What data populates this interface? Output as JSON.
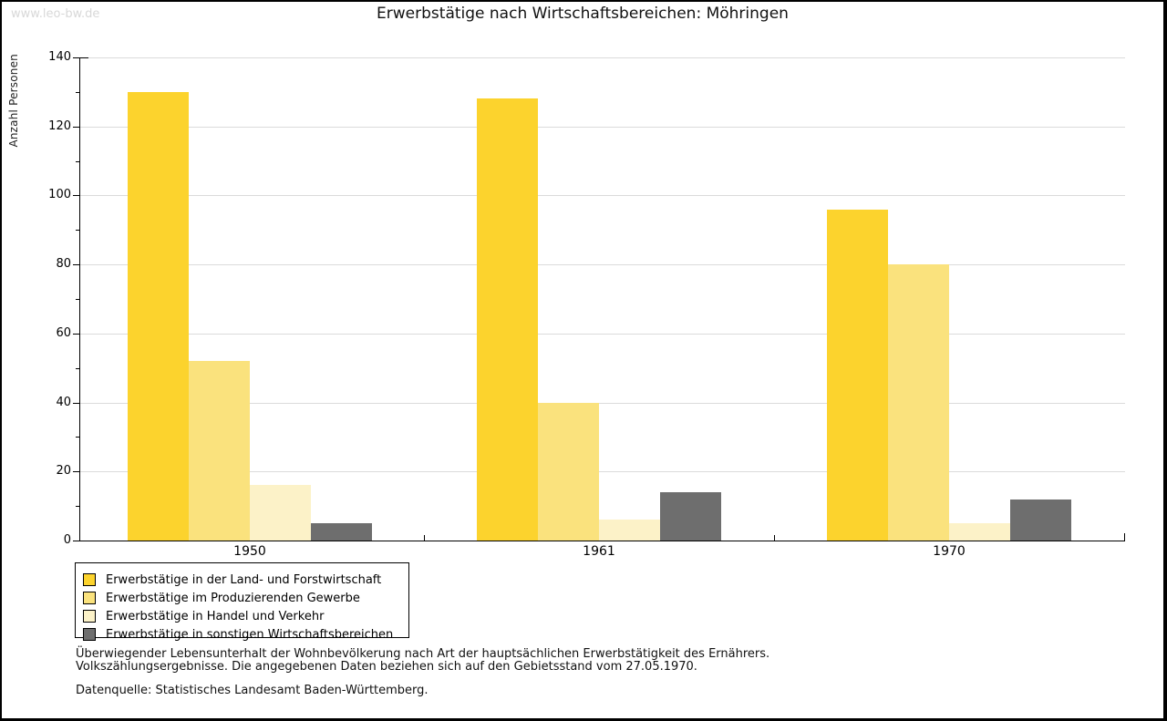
{
  "page": {
    "watermark": "www.leo-bw.de",
    "title": "Erwerbstätige nach Wirtschaftsbereichen: Möhringen"
  },
  "chart_data": {
    "type": "bar",
    "title": "Erwerbstätige nach Wirtschaftsbereichen: Möhringen",
    "xlabel": "",
    "ylabel": "Anzahl Personen",
    "ylim": [
      0,
      140
    ],
    "yticks": [
      0,
      20,
      40,
      60,
      80,
      100,
      120,
      140
    ],
    "grid": true,
    "legend_position": "bottom-left",
    "categories": [
      "1950",
      "1961",
      "1970"
    ],
    "series": [
      {
        "name": "Erwerbstätige in der Land- und Forstwirtschaft",
        "color": "#FCD32D",
        "values": [
          130,
          128,
          96
        ]
      },
      {
        "name": "Erwerbstätige im Produzierenden Gewerbe",
        "color": "#FAE27D",
        "values": [
          52,
          40,
          80
        ]
      },
      {
        "name": "Erwerbstätige in Handel und Verkehr",
        "color": "#FCF2C8",
        "values": [
          16,
          6,
          5
        ]
      },
      {
        "name": "Erwerbstätige in sonstigen Wirtschaftsbereichen",
        "color": "#6E6E6E",
        "values": [
          5,
          14,
          12
        ]
      }
    ]
  },
  "footer": {
    "note_line1": "Überwiegender Lebensunterhalt der Wohnbevölkerung nach Art der hauptsächlichen Erwerbstätigkeit des Ernährers.",
    "note_line2": "Volkszählungsergebnisse. Die angegebenen Daten beziehen sich auf den Gebietsstand vom 27.05.1970.",
    "source": "Datenquelle: Statistisches Landesamt Baden-Württemberg."
  }
}
